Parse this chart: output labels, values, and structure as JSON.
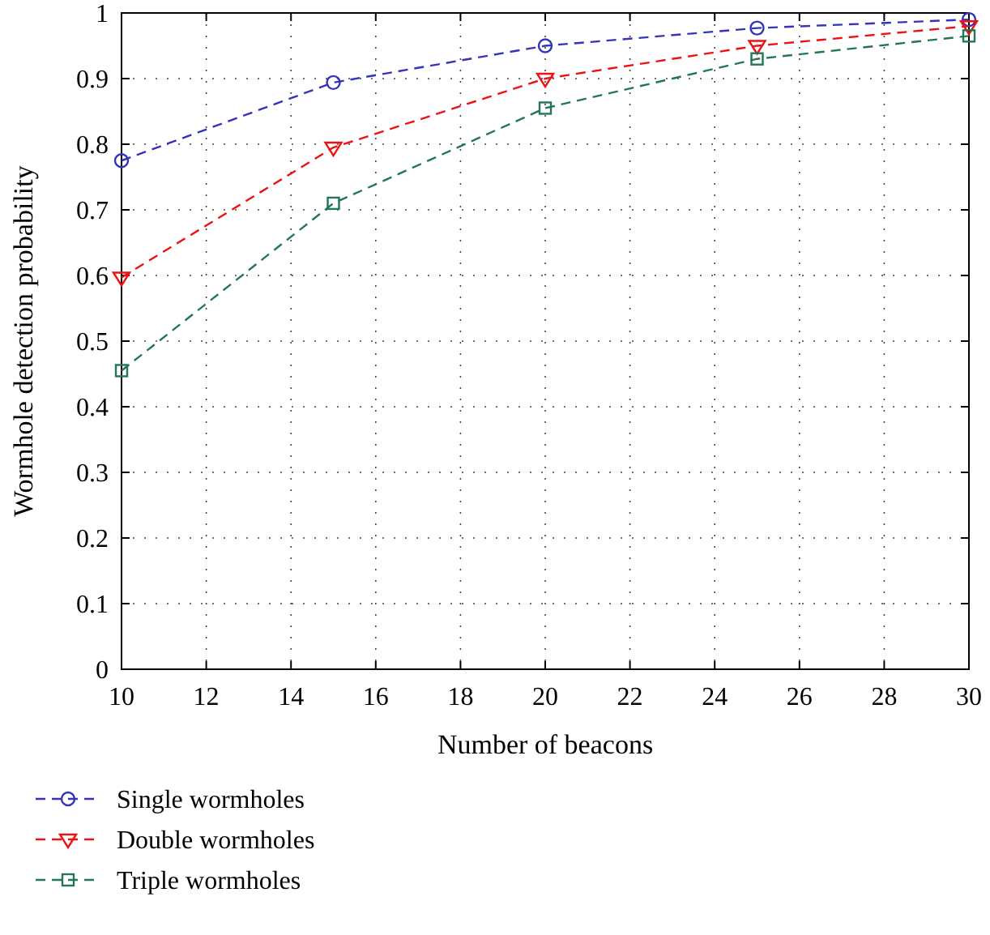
{
  "chart_data": {
    "type": "line",
    "xlabel": "Number of beacons",
    "ylabel": "Wormhole detection probability",
    "x": [
      10,
      15,
      20,
      25,
      30
    ],
    "series": [
      {
        "name": "Single wormholes",
        "color": "#3333bb",
        "marker": "circle",
        "values": [
          0.775,
          0.894,
          0.95,
          0.977,
          0.99
        ]
      },
      {
        "name": "Double wormholes",
        "color": "#ee1111",
        "marker": "triangle",
        "values": [
          0.597,
          0.795,
          0.9,
          0.95,
          0.98
        ]
      },
      {
        "name": "Triple wormholes",
        "color": "#227755",
        "marker": "square",
        "values": [
          0.455,
          0.71,
          0.855,
          0.93,
          0.965
        ]
      }
    ],
    "xlim": [
      10,
      30
    ],
    "xticks": [
      10,
      12,
      14,
      16,
      18,
      20,
      22,
      24,
      26,
      28,
      30
    ],
    "ylim": [
      0,
      1
    ],
    "yticks": [
      0,
      0.1,
      0.2,
      0.3,
      0.4,
      0.5,
      0.6,
      0.7,
      0.8,
      0.9,
      1
    ],
    "grid": true,
    "legend": "bottom left",
    "line_style": "dashed"
  }
}
